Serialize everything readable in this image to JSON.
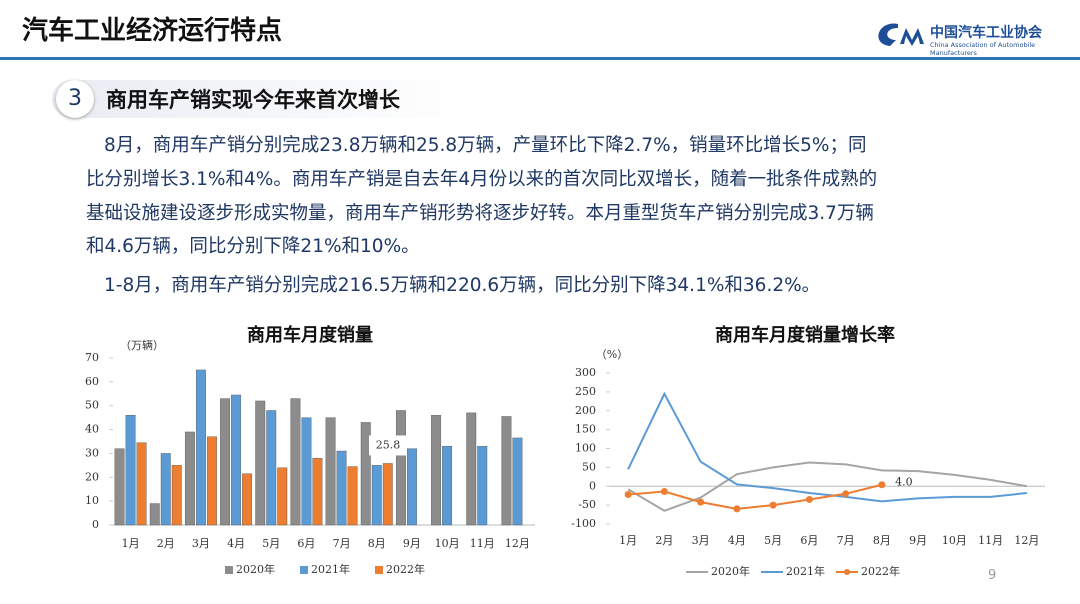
{
  "header": {
    "title": "汽车工业经济运行特点",
    "logo_name": "中国汽车工业协会",
    "logo_english": "China Association of Automobile Manufacturers"
  },
  "section": {
    "number": "3",
    "title": "商用车产销实现今年来首次增长"
  },
  "paragraphs": [
    [
      "8月，商用车产销分别完成23.8万辆和25.8万辆，产量环比下降2.7%，销量环比增长5%；同",
      "比分别增长3.1%和4%。商用车产销是自去年4月份以来的首次同比双增长，随着一批条件成熟的",
      "基础设施建设逐步形成实物量，商用车产销形势将逐步好转。本月重型货车产销分别完成3.7万辆",
      "和4.6万辆，同比分别下降21%和10%。"
    ],
    [
      "1-8月，商用车产销分别完成216.5万辆和220.6万辆，同比分别下降34.1%和36.2%。"
    ]
  ],
  "page_number": "9",
  "chart_data": [
    {
      "type": "bar",
      "title": "商用车月度销量",
      "y_label": "（万辆）",
      "categories": [
        "1月",
        "2月",
        "3月",
        "4月",
        "5月",
        "6月",
        "7月",
        "8月",
        "9月",
        "10月",
        "11月",
        "12月"
      ],
      "series": [
        {
          "name": "2020年",
          "color": "#8c8c8c",
          "values": [
            32,
            9,
            39,
            53,
            52,
            53,
            45,
            43,
            48,
            46,
            47,
            45.5
          ]
        },
        {
          "name": "2021年",
          "color": "#5b9bd5",
          "values": [
            46,
            30,
            65,
            54.5,
            48,
            45,
            31,
            25,
            32,
            33,
            33,
            36.5
          ]
        },
        {
          "name": "2022年",
          "color": "#ed7d31",
          "values": [
            34.5,
            25,
            37,
            21.5,
            24,
            28,
            24.5,
            25.8,
            null,
            null,
            null,
            null
          ],
          "value_labels": [
            null,
            null,
            null,
            null,
            null,
            null,
            null,
            "25.8",
            null,
            null,
            null,
            null
          ]
        }
      ],
      "ylim": [
        0,
        70
      ],
      "yticks": [
        0,
        10,
        20,
        30,
        40,
        50,
        60,
        70
      ],
      "grid": false,
      "legend": "bottom"
    },
    {
      "type": "line",
      "title": "商用车月度销量增长率",
      "y_label": "（%）",
      "categories": [
        "1月",
        "2月",
        "3月",
        "4月",
        "5月",
        "6月",
        "7月",
        "8月",
        "9月",
        "10月",
        "11月",
        "12月"
      ],
      "series": [
        {
          "name": "2020年",
          "color": "#a5a5a5",
          "values": [
            -8,
            -65,
            -30,
            32,
            50,
            63,
            58,
            42,
            40,
            30,
            17,
            0
          ]
        },
        {
          "name": "2021年",
          "color": "#5b9bd5",
          "values": [
            45,
            245,
            65,
            5,
            -5,
            -18,
            -28,
            -40,
            -32,
            -28,
            -28,
            -18
          ]
        },
        {
          "name": "2022年",
          "color": "#ed7d31",
          "marker": true,
          "values": [
            -22,
            -14,
            -42,
            -60,
            -50,
            -35,
            -20,
            4,
            null,
            null,
            null,
            null
          ],
          "value_labels": [
            null,
            null,
            null,
            null,
            null,
            null,
            null,
            "4.0",
            null,
            null,
            null,
            null
          ]
        }
      ],
      "ylim": [
        -100,
        300
      ],
      "yticks": [
        -100,
        -50,
        0,
        50,
        100,
        150,
        200,
        250,
        300
      ],
      "grid": false,
      "legend": "bottom"
    }
  ]
}
